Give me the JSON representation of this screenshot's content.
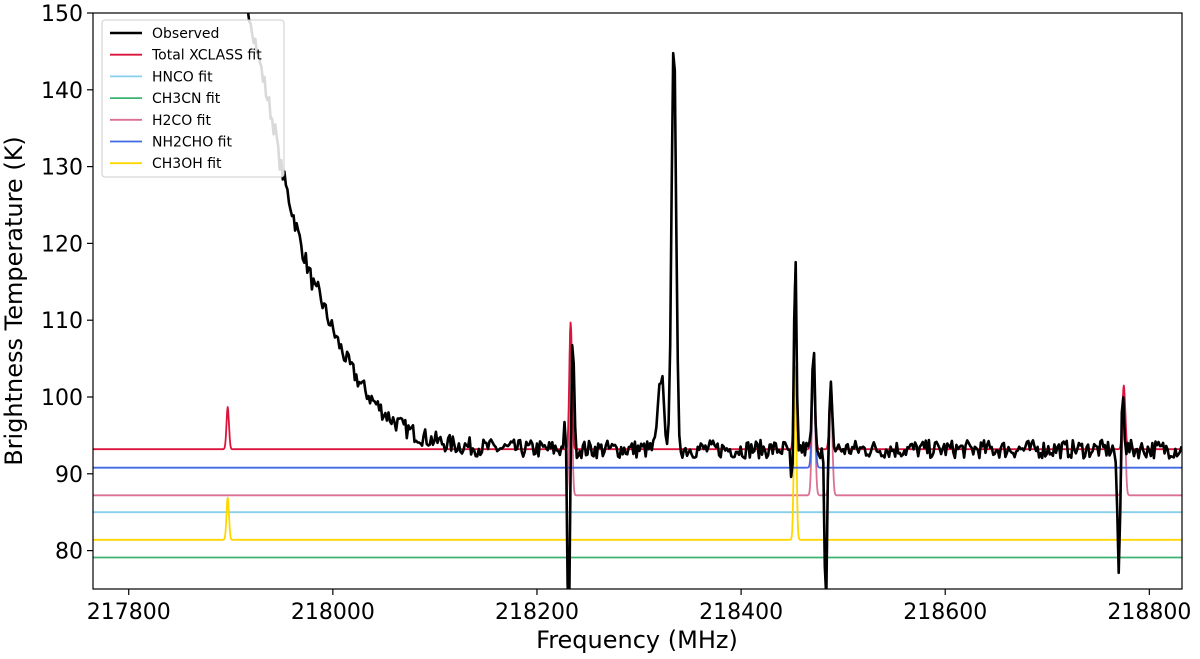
{
  "chart_data": {
    "type": "line",
    "title": "",
    "xlabel": "Frequency (MHz)",
    "ylabel": "Brightness Temperature (K)",
    "xlim": [
      217765,
      218832
    ],
    "ylim": [
      75,
      150
    ],
    "x_ticks": [
      217800,
      218000,
      218200,
      218400,
      218600,
      218800
    ],
    "y_ticks": [
      80,
      90,
      100,
      110,
      120,
      130,
      140,
      150
    ],
    "grid": false,
    "legend_position": "top-left",
    "series": [
      {
        "name": "Observed",
        "color": "#000000",
        "kind": "noisy",
        "baseline": 93.2,
        "noise": 1.2,
        "features": [
          [
            217822,
            93,
            97
          ],
          [
            217830,
            1.5,
            -5.5
          ],
          [
            217842,
            3,
            3
          ],
          [
            218228,
            1.5,
            3.5
          ],
          [
            218231,
            1.3,
            -25
          ],
          [
            218235,
            1.2,
            16.5
          ],
          [
            218322,
            3,
            9.5
          ],
          [
            218334,
            2.2,
            53.5
          ],
          [
            218328,
            1.5,
            -3
          ],
          [
            218450,
            1.3,
            -6
          ],
          [
            218453,
            1.2,
            25.5
          ],
          [
            218471,
            1.4,
            12.5
          ],
          [
            218483,
            1.2,
            -22
          ],
          [
            218488,
            1.2,
            9.5
          ],
          [
            218770,
            1.4,
            -16
          ],
          [
            218774,
            1.2,
            8.5
          ]
        ]
      },
      {
        "name": "Total XCLASS fit",
        "color": "#dc143c",
        "kind": "model",
        "baseline": 93.2,
        "peaks": [
          [
            217897,
            1.2,
            5.5
          ],
          [
            218233,
            1.3,
            16.5
          ],
          [
            218453,
            1.2,
            23
          ],
          [
            218471,
            1.5,
            12
          ],
          [
            218488,
            1.4,
            8.5
          ],
          [
            218775,
            1.4,
            8.3
          ]
        ]
      },
      {
        "name": "HNCO fit",
        "color": "#87ceeb",
        "kind": "model",
        "baseline": 85,
        "peaks": []
      },
      {
        "name": "CH3CN fit",
        "color": "#3cb371",
        "kind": "model",
        "baseline": 79.1,
        "peaks": []
      },
      {
        "name": "H2CO fit",
        "color": "#db7093",
        "kind": "model",
        "baseline": 87.2,
        "peaks": [
          [
            218233,
            1.3,
            22.5
          ],
          [
            218471,
            1.5,
            17
          ],
          [
            218488,
            1.4,
            13.5
          ],
          [
            218775,
            1.4,
            14
          ]
        ]
      },
      {
        "name": "NH2CHO fit",
        "color": "#4169e1",
        "kind": "model",
        "baseline": 90.8,
        "peaks": [
          [
            218471,
            1.5,
            12.5
          ]
        ]
      },
      {
        "name": "CH3OH fit",
        "color": "#ffd700",
        "kind": "model",
        "baseline": 81.4,
        "peaks": [
          [
            217897,
            1.2,
            5.5
          ],
          [
            218453,
            1.2,
            22.5
          ]
        ]
      }
    ]
  }
}
